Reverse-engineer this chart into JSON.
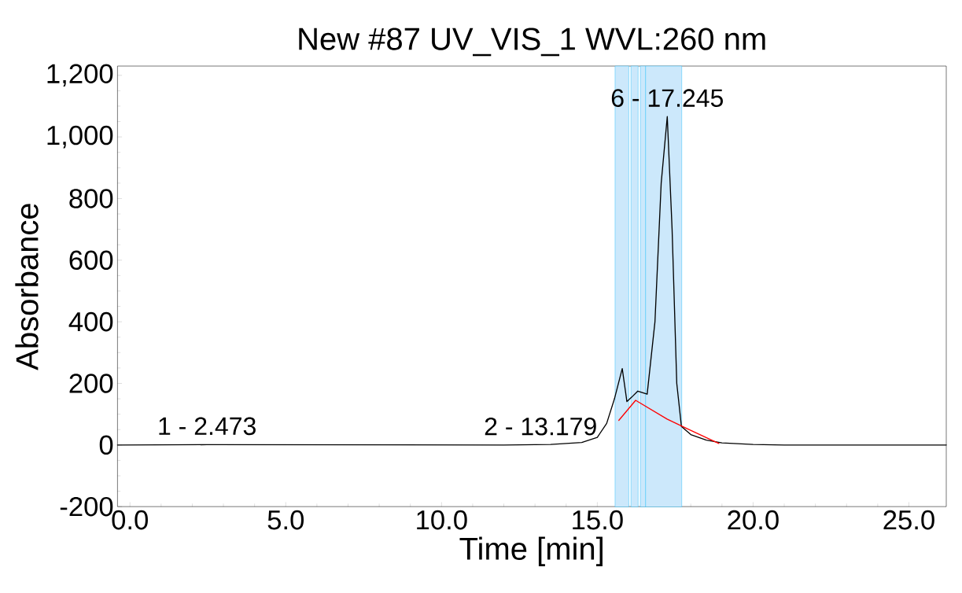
{
  "chart_data": {
    "type": "line",
    "title": "New #87 UV_VIS_1 WVL:260 nm",
    "xlabel": "Time [min]",
    "ylabel": "Absorbance",
    "xlim": [
      -0.4,
      26.2
    ],
    "ylim": [
      -200,
      1230
    ],
    "xticks": [
      {
        "value": 0,
        "label": "0.0"
      },
      {
        "value": 5,
        "label": "5.0"
      },
      {
        "value": 10,
        "label": "10.0"
      },
      {
        "value": 15,
        "label": "15.0"
      },
      {
        "value": 20,
        "label": "20.0"
      },
      {
        "value": 25,
        "label": "25.0"
      }
    ],
    "yticks": [
      -200,
      0,
      200,
      400,
      600,
      800,
      {
        "value": 1000,
        "label": "1,000"
      },
      {
        "value": 1200,
        "label": "1,200"
      }
    ],
    "grid": false,
    "marker": "none",
    "series": [
      {
        "color": "#000000",
        "x": [
          -0.4,
          2.473,
          12.0,
          13.5,
          14.5,
          15.0,
          15.3,
          15.55,
          15.8,
          15.95,
          16.1,
          16.3,
          16.6,
          16.85,
          17.05,
          17.245,
          17.4,
          17.55,
          17.7,
          18.0,
          18.5,
          19.0,
          20.0,
          21.0,
          26.2
        ],
        "values": [
          0,
          1,
          0,
          2,
          8,
          25,
          70,
          150,
          248,
          141,
          155,
          175,
          165,
          400,
          850,
          1066,
          700,
          200,
          60,
          34,
          16,
          7,
          2,
          0,
          0
        ]
      },
      {
        "color": "#ff0000",
        "x": [
          15.69,
          16.23,
          17.24,
          17.9,
          18.9
        ],
        "values": [
          80,
          145,
          84,
          52,
          5
        ]
      }
    ],
    "bands": [
      {
        "axis": "x",
        "from": 15.57,
        "to": 16.01,
        "color": "#cce8fb"
      },
      {
        "axis": "x",
        "from": 16.08,
        "to": 16.31,
        "color": "#cce8fb"
      },
      {
        "axis": "x",
        "from": 16.38,
        "to": 16.55,
        "color": "#cce8fb"
      },
      {
        "axis": "x",
        "from": 16.55,
        "to": 17.71,
        "color": "#cce8fb"
      }
    ],
    "annotations": [
      {
        "text": "1 - 2.473",
        "x": 2.473,
        "y": 1
      },
      {
        "text": "2 - 13.179",
        "x": 13.179,
        "y": 0
      },
      {
        "text": "6 - 17.245",
        "x": 17.245,
        "y": 1066
      }
    ]
  }
}
